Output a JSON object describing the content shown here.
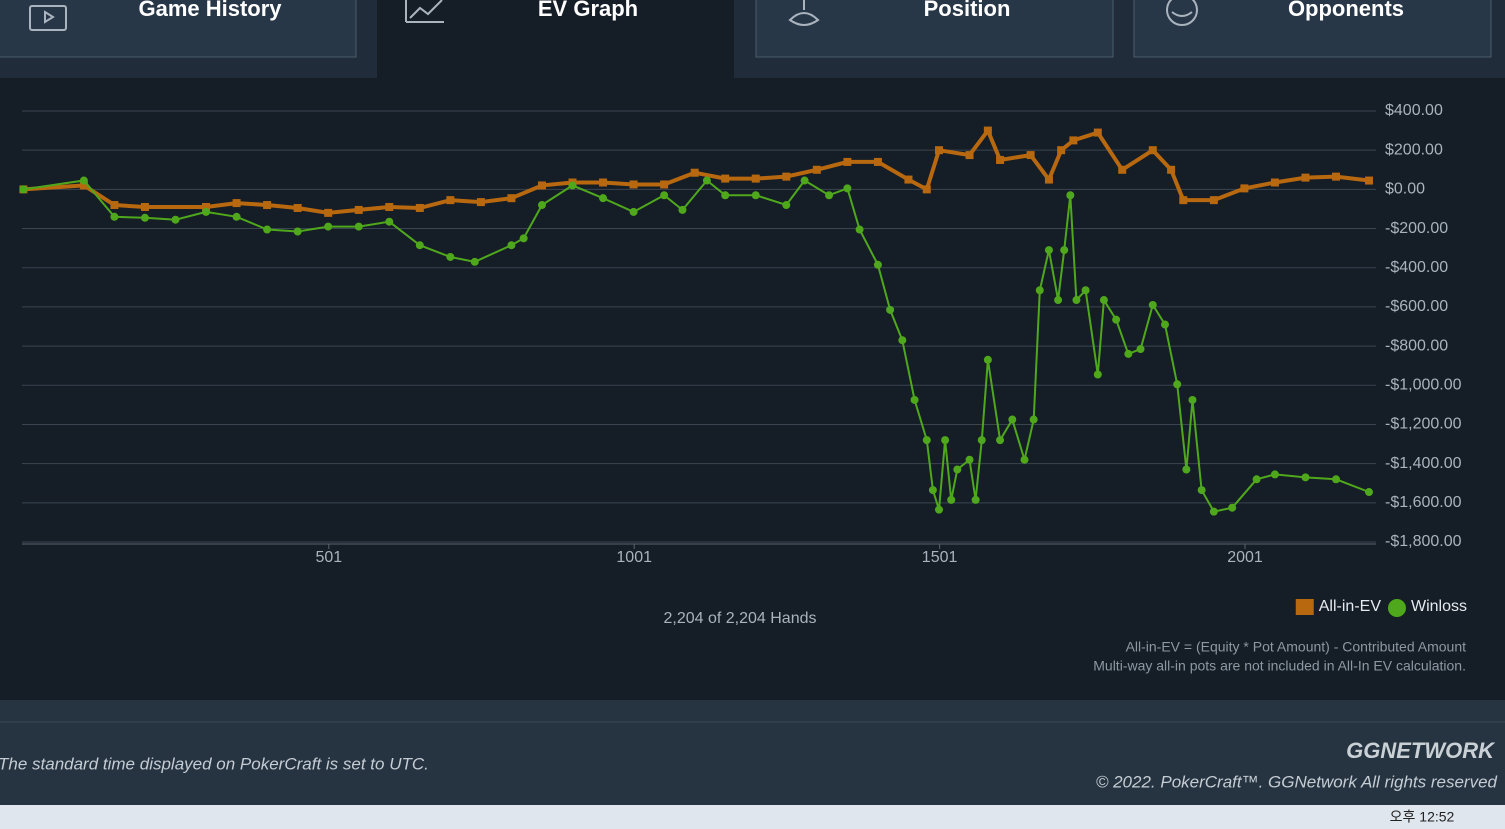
{
  "tabs": [
    "Game History",
    "EV Graph",
    "Position",
    "Opponents"
  ],
  "chart_data": {
    "type": "line",
    "series": [
      {
        "name": "All-in-EV",
        "color": "#b8680f",
        "marker": "square",
        "x": [
          1,
          100,
          150,
          200,
          300,
          350,
          400,
          450,
          500,
          550,
          600,
          650,
          700,
          750,
          800,
          850,
          900,
          950,
          1000,
          1050,
          1100,
          1150,
          1200,
          1250,
          1300,
          1350,
          1400,
          1450,
          1480,
          1500,
          1550,
          1580,
          1600,
          1650,
          1680,
          1700,
          1720,
          1760,
          1800,
          1850,
          1880,
          1900,
          1950,
          2000,
          2050,
          2100,
          2150,
          2204
        ],
        "values": [
          0,
          20,
          -80,
          -90,
          -90,
          -70,
          -80,
          -95,
          -120,
          -105,
          -90,
          -95,
          -55,
          -65,
          -45,
          20,
          35,
          35,
          25,
          25,
          85,
          55,
          55,
          65,
          100,
          140,
          140,
          50,
          0,
          200,
          175,
          300,
          150,
          175,
          50,
          200,
          250,
          290,
          100,
          200,
          100,
          -55,
          -55,
          5,
          35,
          60,
          65,
          45
        ]
      },
      {
        "name": "Winloss",
        "color": "#4fa81c",
        "marker": "circle",
        "x": [
          1,
          100,
          150,
          200,
          250,
          300,
          350,
          400,
          450,
          500,
          550,
          600,
          650,
          700,
          740,
          800,
          820,
          850,
          900,
          950,
          1000,
          1050,
          1080,
          1120,
          1150,
          1200,
          1250,
          1280,
          1320,
          1350,
          1370,
          1400,
          1420,
          1440,
          1460,
          1480,
          1490,
          1500,
          1510,
          1520,
          1530,
          1550,
          1560,
          1570,
          1580,
          1600,
          1620,
          1640,
          1655,
          1665,
          1680,
          1695,
          1705,
          1715,
          1725,
          1740,
          1760,
          1770,
          1790,
          1810,
          1830,
          1850,
          1870,
          1890,
          1905,
          1915,
          1930,
          1950,
          1980,
          2020,
          2050,
          2100,
          2150,
          2204
        ],
        "values": [
          0,
          45,
          -140,
          -145,
          -155,
          -115,
          -140,
          -205,
          -215,
          -190,
          -190,
          -165,
          -285,
          -345,
          -370,
          -285,
          -250,
          -80,
          20,
          -45,
          -115,
          -30,
          -105,
          45,
          -30,
          -30,
          -80,
          45,
          -30,
          5,
          -205,
          -385,
          -615,
          -770,
          -1075,
          -1280,
          -1535,
          -1635,
          -1280,
          -1585,
          -1430,
          -1380,
          -1585,
          -1280,
          -870,
          -1280,
          -1175,
          -1380,
          -1175,
          -515,
          -310,
          -565,
          -310,
          -30,
          -565,
          -515,
          -945,
          -565,
          -665,
          -840,
          -815,
          -590,
          -690,
          -995,
          -1430,
          -1075,
          -1535,
          -1645,
          -1625,
          -1480,
          -1455,
          -1470,
          -1480,
          -1545
        ]
      }
    ],
    "xlim": [
      1,
      2204
    ],
    "xticks": [
      501,
      1001,
      1501,
      2001
    ],
    "ylim": [
      -1800,
      400
    ],
    "yticks": [
      {
        "value": 400,
        "label": "$400.00"
      },
      {
        "value": 200,
        "label": "$200.00"
      },
      {
        "value": 0,
        "label": "$0.00"
      },
      {
        "value": -200,
        "label": "-$200.00"
      },
      {
        "value": -400,
        "label": "-$400.00"
      },
      {
        "value": -600,
        "label": "-$600.00"
      },
      {
        "value": -800,
        "label": "-$800.00"
      },
      {
        "value": -1000,
        "label": "-$1,000.00"
      },
      {
        "value": -1200,
        "label": "-$1,200.00"
      },
      {
        "value": -1400,
        "label": "-$1,400.00"
      },
      {
        "value": -1600,
        "label": "-$1,600.00"
      },
      {
        "value": -1800,
        "label": "-$1,800.00"
      }
    ],
    "grid": true,
    "legend": "bottom-right",
    "hands_label": "2,204 of 2,204 Hands",
    "notes": [
      "All-in-EV = (Equity * Pot Amount) - Contributed Amount",
      "Multi-way all-in pots are not included in All-In EV calculation."
    ]
  },
  "footer": {
    "utc_note": "The standard time displayed on PokerCraft is set to UTC.",
    "logo": "GGNETWORK",
    "copyright": "© 2022. PokerCraft™. GGNetwork All rights reserved"
  },
  "taskbar": {
    "clock": "오후 12:52"
  }
}
